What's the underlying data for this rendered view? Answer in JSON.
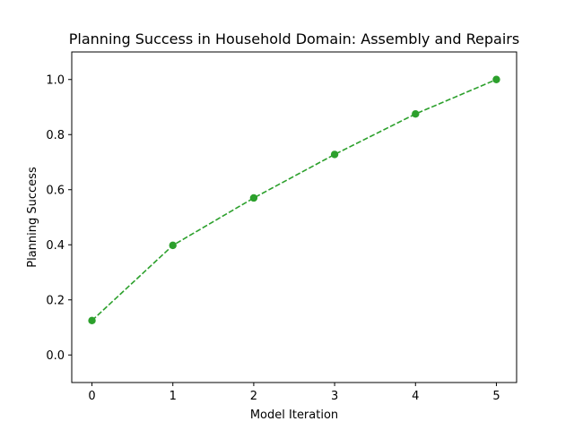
{
  "chart_data": {
    "type": "line",
    "title": "Planning Success in Household Domain: Assembly and Repairs",
    "xlabel": "Model Iteration",
    "ylabel": "Planning Success",
    "x": [
      0,
      1,
      2,
      3,
      4,
      5
    ],
    "series": [
      {
        "values": [
          0.125,
          0.398,
          0.57,
          0.728,
          0.875,
          1.0
        ],
        "color": "#2ca02c",
        "line_style": "dashed",
        "marker": "circle"
      }
    ],
    "xlim": [
      -0.25,
      5.25
    ],
    "ylim": [
      -0.1,
      1.1
    ],
    "xticks": [
      "0",
      "1",
      "2",
      "3",
      "4",
      "5"
    ],
    "yticks": [
      "0.0",
      "0.2",
      "0.4",
      "0.6",
      "0.8",
      "1.0"
    ],
    "grid": false,
    "legend": "none"
  }
}
